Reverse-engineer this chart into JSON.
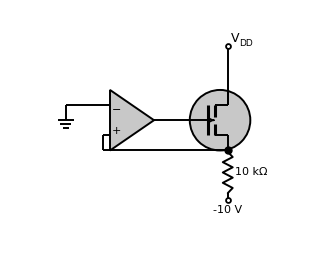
{
  "bg_color": "#ffffff",
  "line_color": "#000000",
  "circle_fill": "#c8c8c8",
  "opamp_fill": "#c8c8c8",
  "vdd_label": "V",
  "vdd_sub": "DD",
  "r_label": "10 kΩ",
  "v_label": "-10 V",
  "figsize": [
    3.22,
    2.68
  ],
  "dpi": 100,
  "xlim": [
    0,
    9
  ],
  "ylim": [
    0,
    7.5
  ]
}
